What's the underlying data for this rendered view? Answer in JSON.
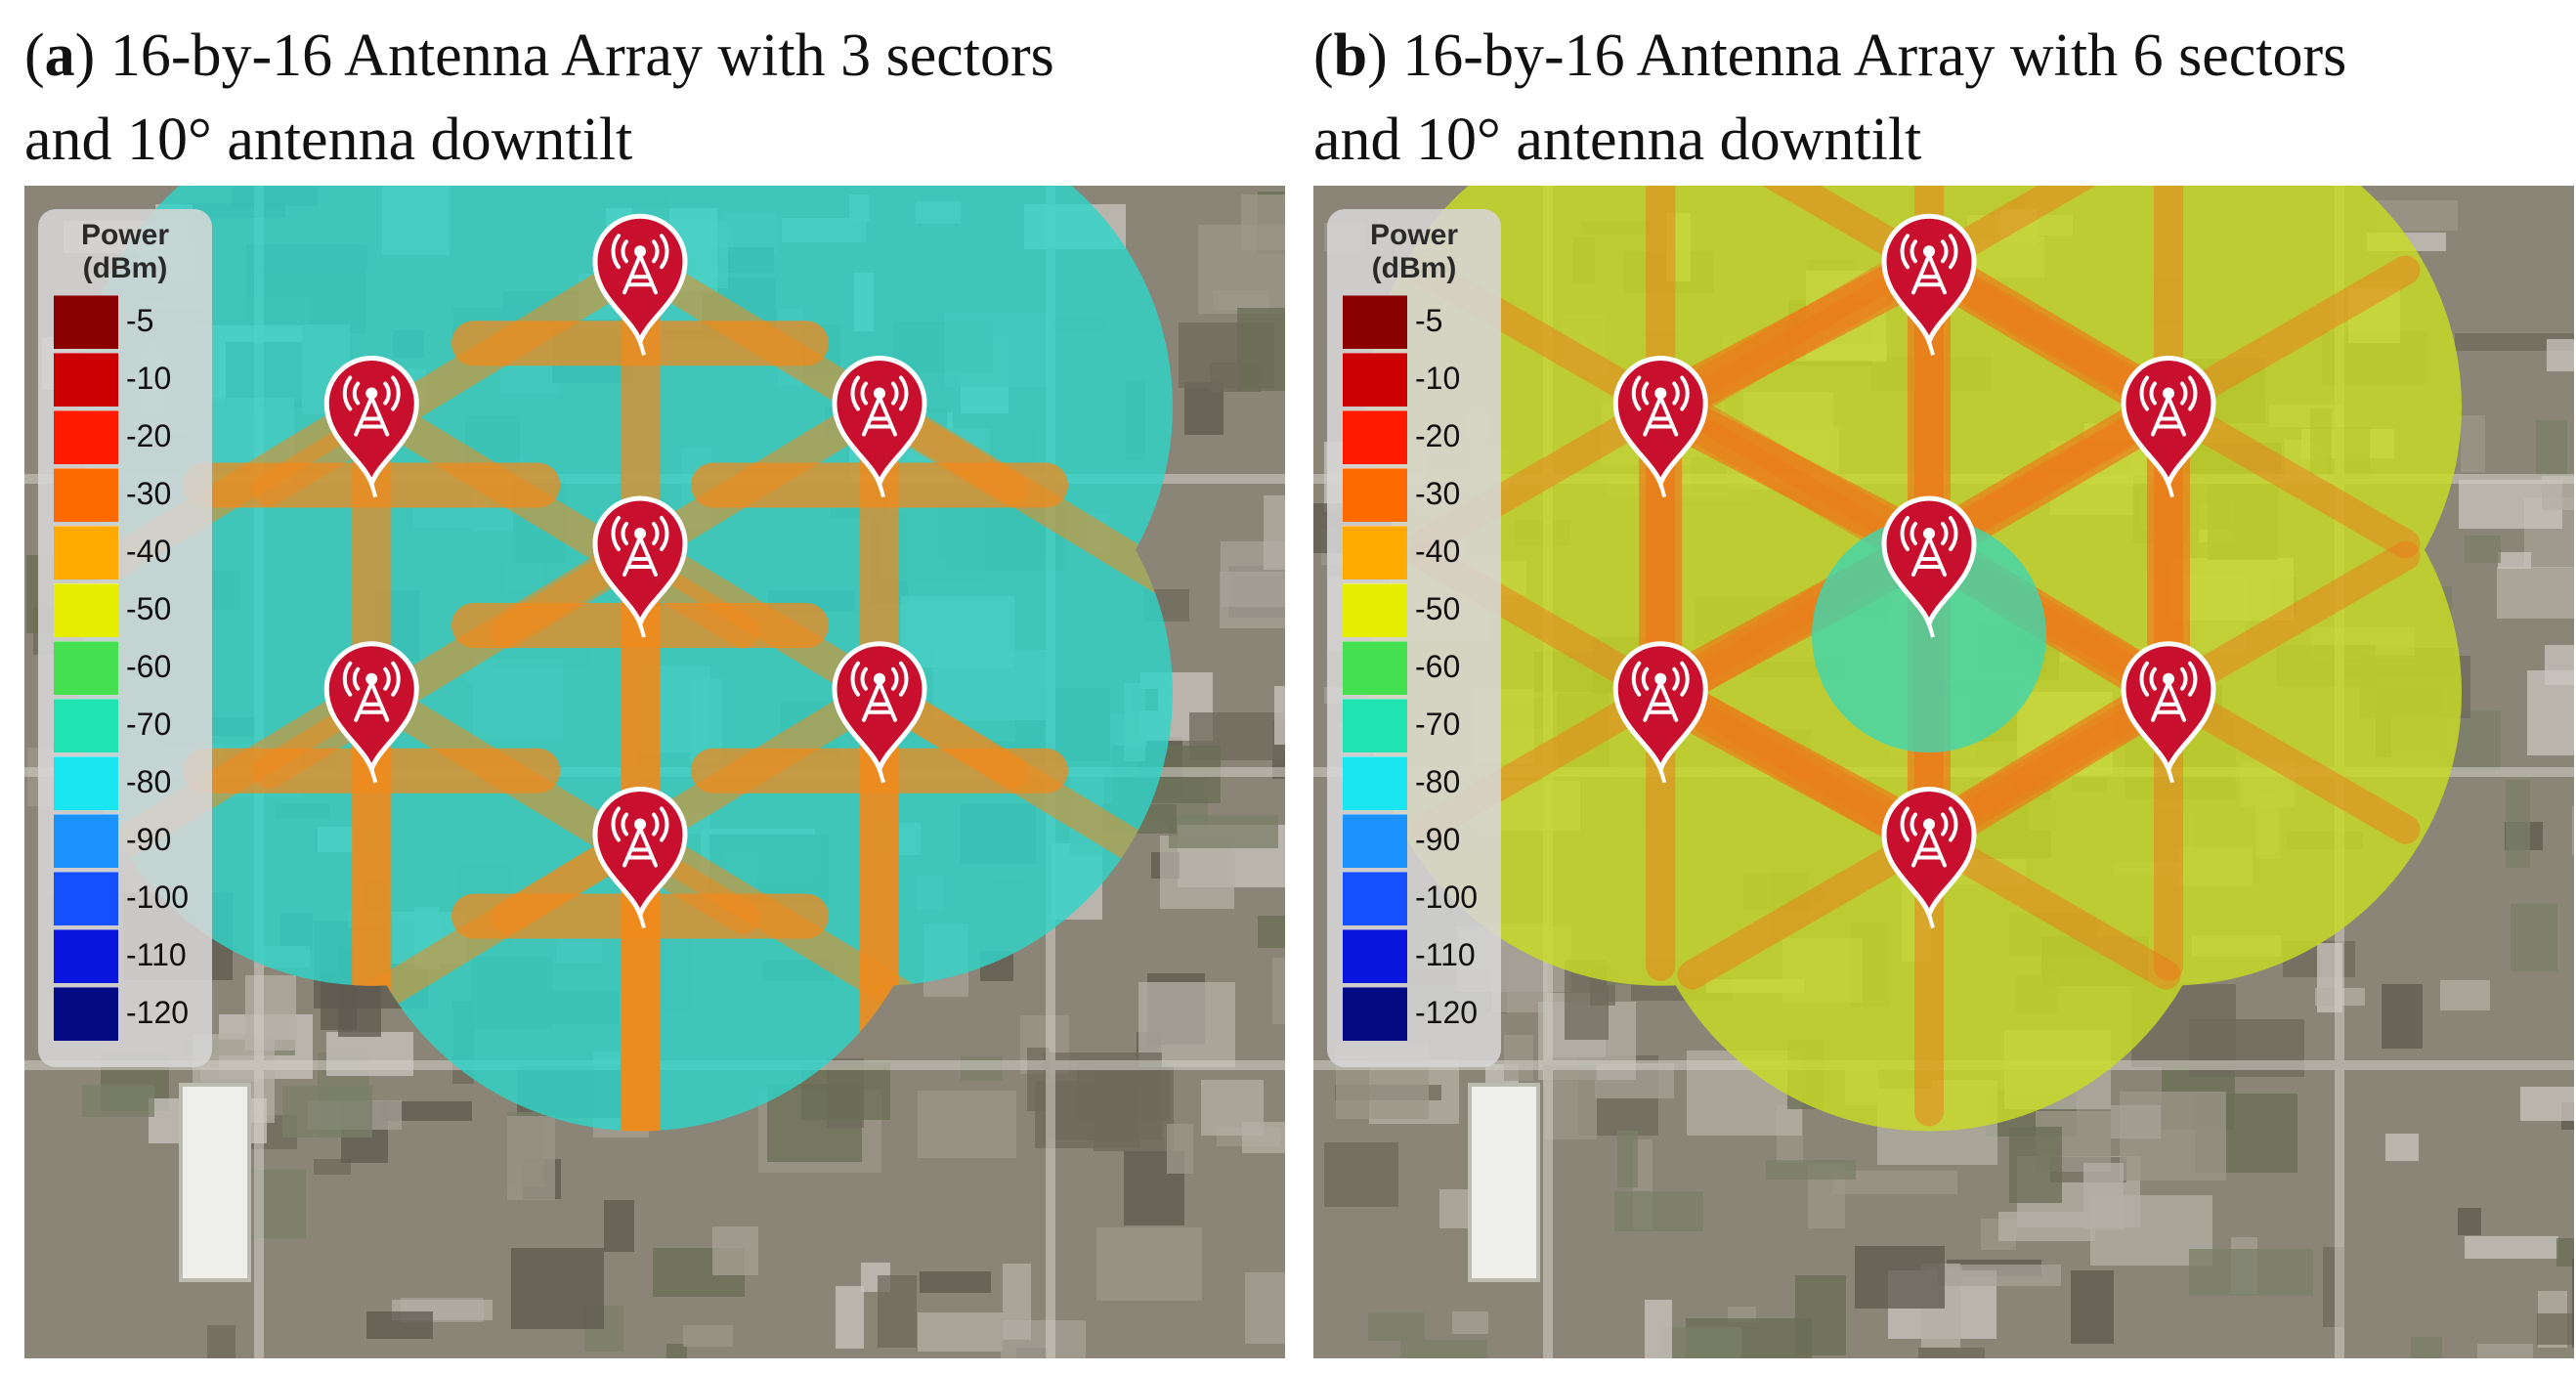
{
  "panels": [
    {
      "id": "a",
      "caption_letter": "a",
      "caption_line1": "16-by-16 Antenna Array with 3 sectors",
      "caption_line2": "and 10° antenna downtilt",
      "coverage_tint": "#2fd4c8",
      "beam_color": "#f08a1c",
      "hotspots": "beams"
    },
    {
      "id": "b",
      "caption_letter": "b",
      "caption_line1": "16-by-16 Antenna Array with 6 sectors",
      "caption_line2": "and 10° antenna downtilt",
      "coverage_tint": "#c9dc24",
      "beam_color": "#ec7a1a",
      "hotspots": "mesh"
    }
  ],
  "legend": {
    "title_line1": "Power",
    "title_line2": "(dBm)",
    "levels": [
      {
        "label": "-5",
        "color": "#8b0000"
      },
      {
        "label": "-10",
        "color": "#cc0000"
      },
      {
        "label": "-20",
        "color": "#ff1a00"
      },
      {
        "label": "-30",
        "color": "#ff6a00"
      },
      {
        "label": "-40",
        "color": "#ffaa00"
      },
      {
        "label": "-50",
        "color": "#e6ee00"
      },
      {
        "label": "-60",
        "color": "#45e050"
      },
      {
        "label": "-70",
        "color": "#1fe3b0"
      },
      {
        "label": "-80",
        "color": "#19e6f0"
      },
      {
        "label": "-90",
        "color": "#1a93ff"
      },
      {
        "label": "-100",
        "color": "#1450ff"
      },
      {
        "label": "-110",
        "color": "#0a16dd"
      },
      {
        "label": "-120",
        "color": "#050a85"
      }
    ]
  },
  "sites": {
    "count": 7,
    "marker_icon": "cell-tower-pin-icon",
    "marker_color": "#c8102e"
  }
}
